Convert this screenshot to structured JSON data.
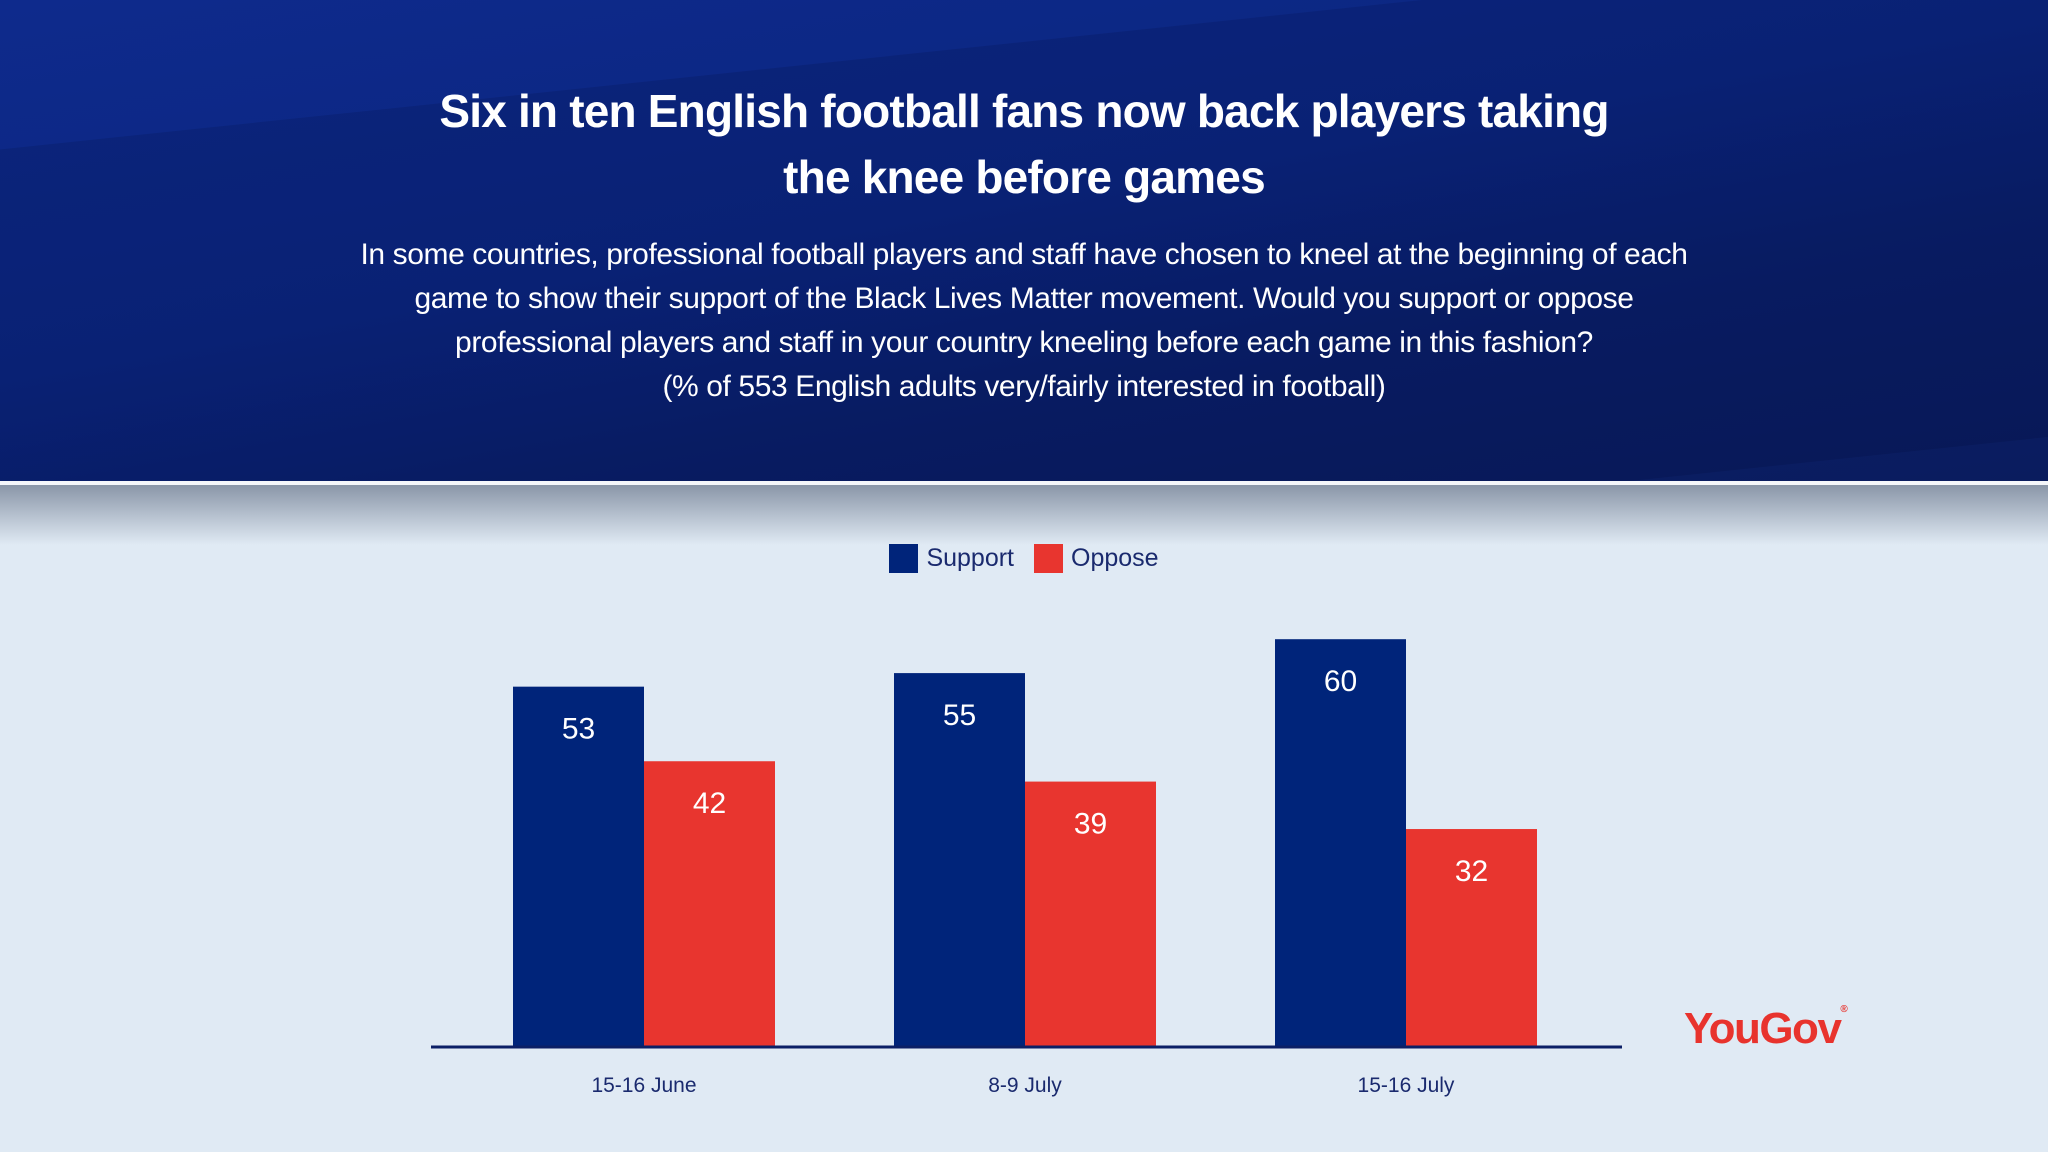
{
  "header": {
    "title_lines": [
      "Six in ten English football fans now back players taking",
      "the knee before games"
    ],
    "subtitle_lines": [
      "In some countries, professional football players and staff have chosen to kneel at the beginning of each",
      "game to show their support of the Black Lives Matter movement. Would you support or oppose",
      "professional players and staff in your country kneeling before each game in this fashion?",
      "(% of 553 English adults very/fairly interested in football)"
    ]
  },
  "logo": "YouGov",
  "colors": {
    "support": "#00247a",
    "oppose": "#e8352f",
    "header": "#0b2680",
    "background": "#e0eaf4"
  },
  "chart_data": {
    "type": "bar",
    "categories": [
      "15-16 June",
      "8-9 July",
      "15-16 July"
    ],
    "series": [
      {
        "name": "Support",
        "values": [
          53,
          55,
          60
        ]
      },
      {
        "name": "Oppose",
        "values": [
          42,
          39,
          32
        ]
      }
    ],
    "ylim": [
      0,
      100
    ],
    "grid": false,
    "legend": "top-center",
    "data_labels": true
  }
}
